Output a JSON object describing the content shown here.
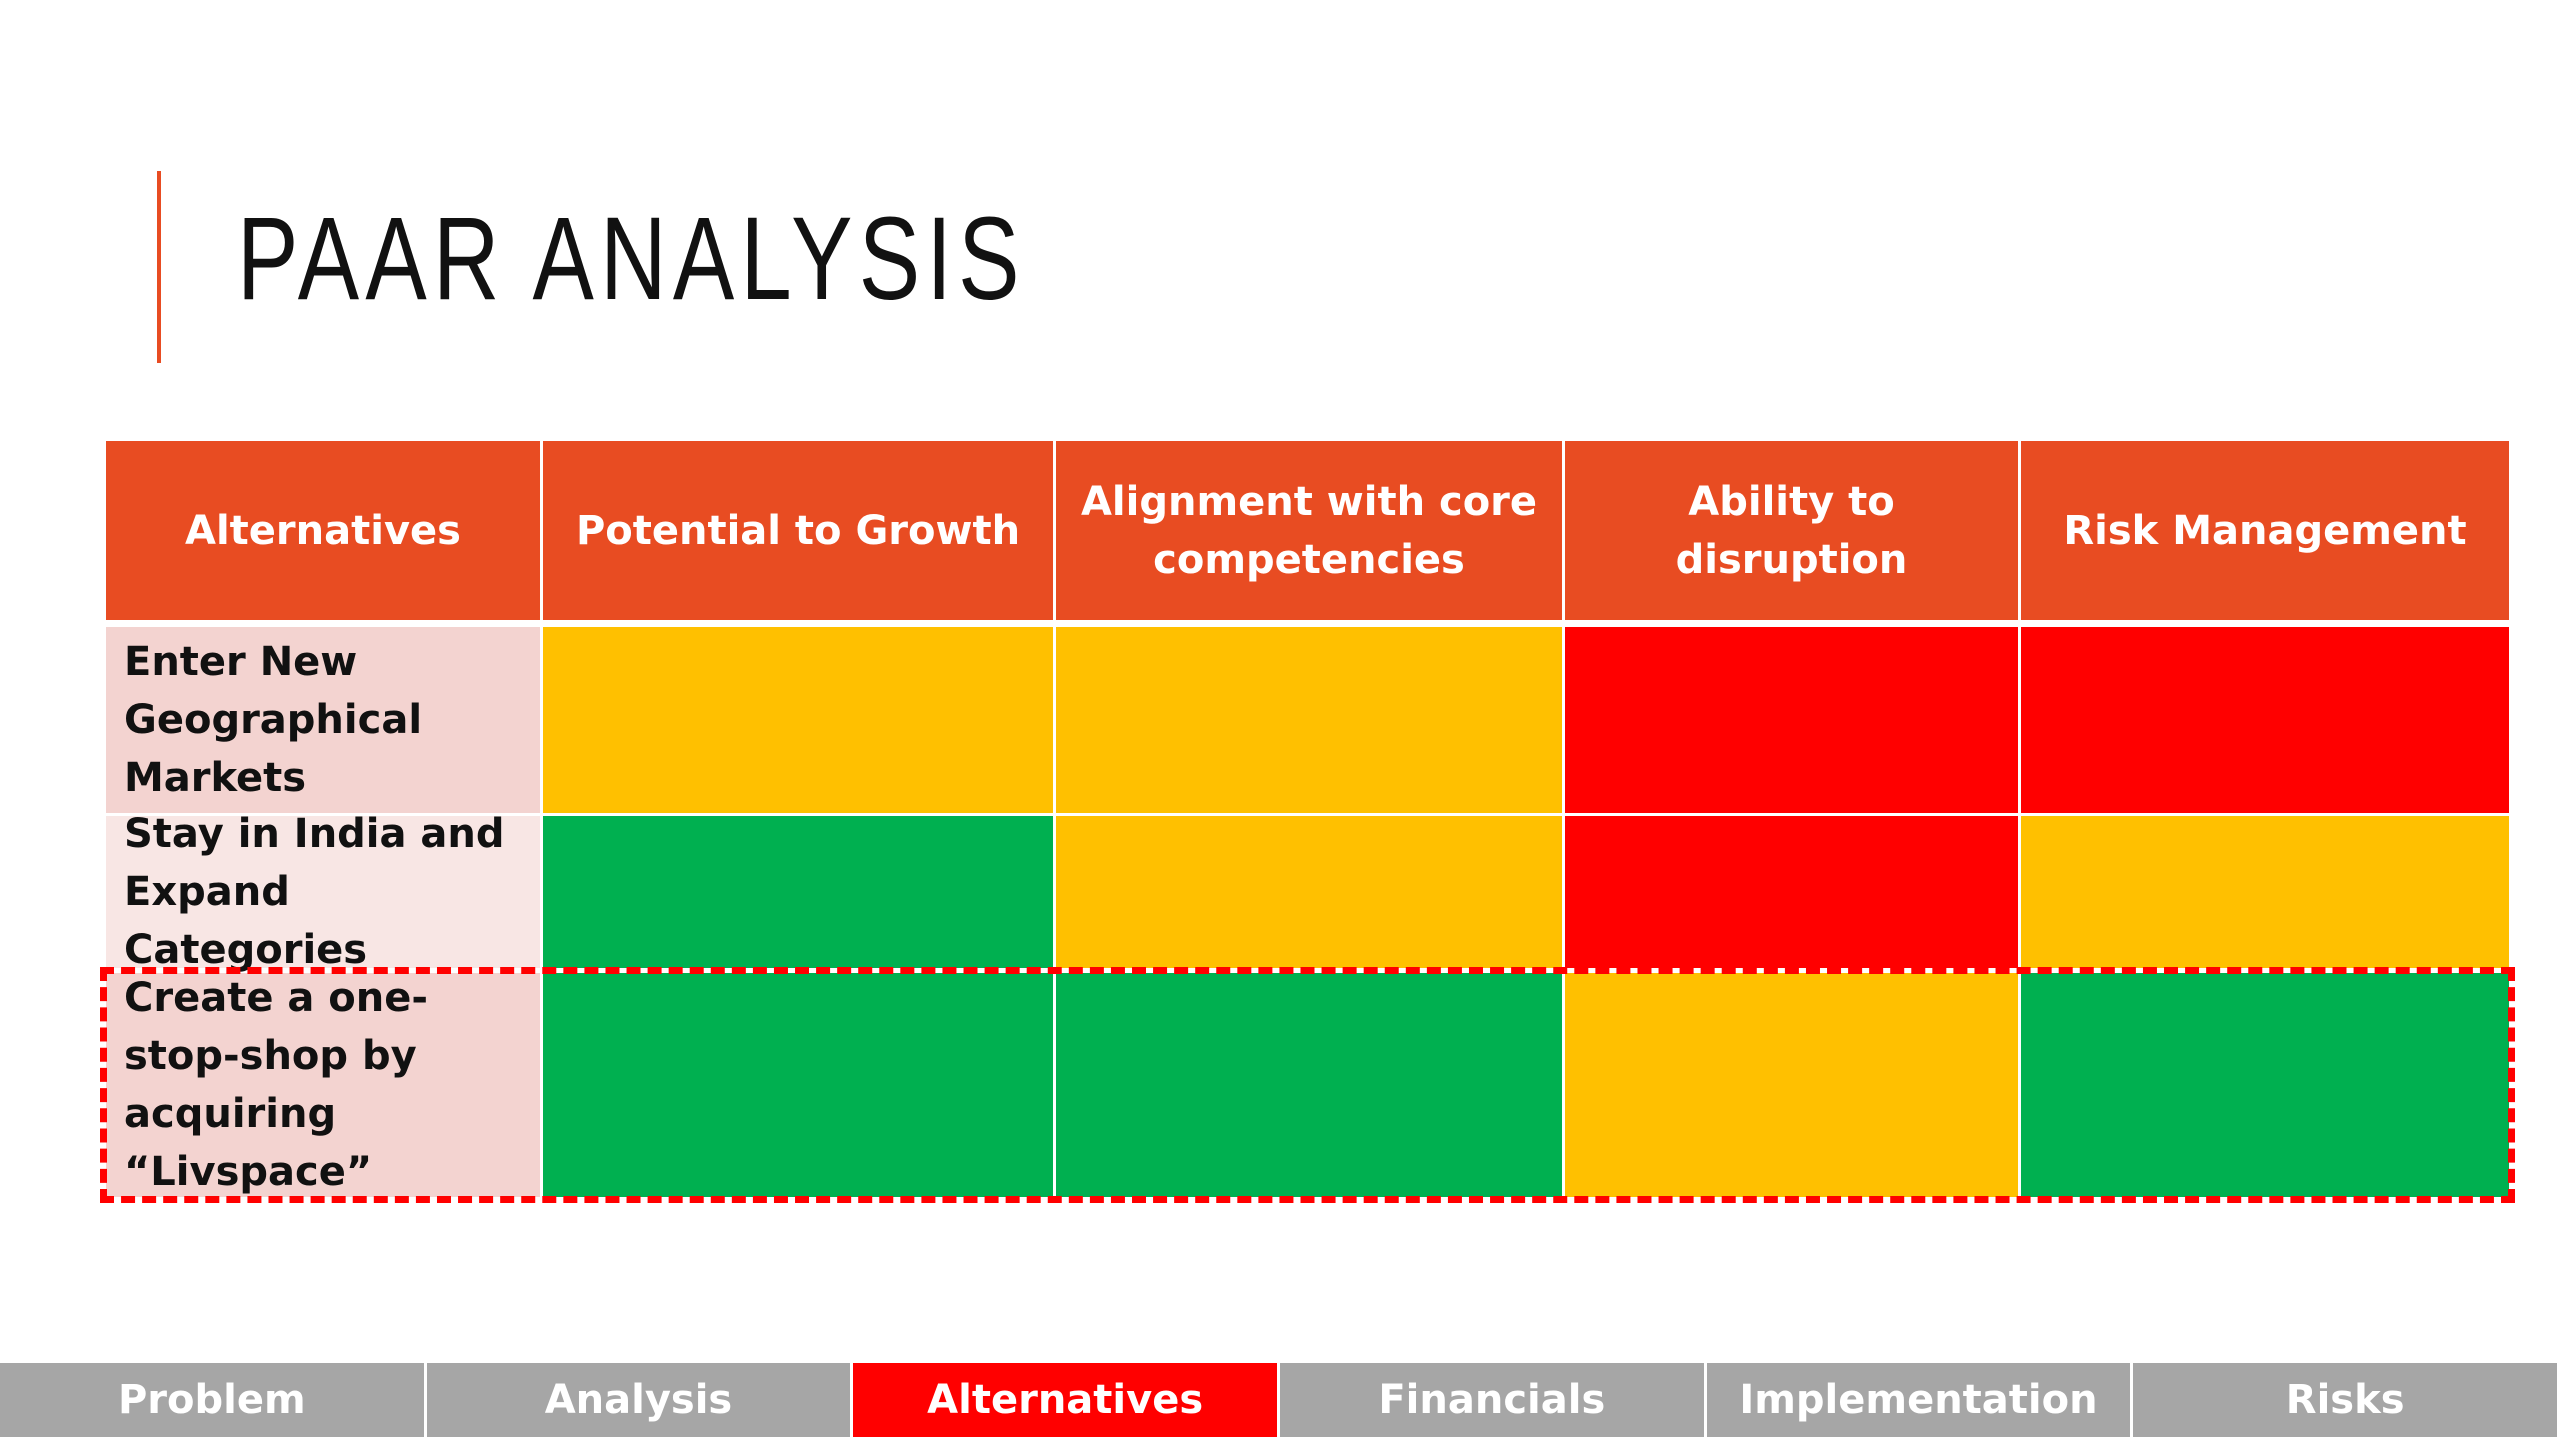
{
  "title": "PAAR ANALYSIS",
  "table": {
    "header": [
      "Alternatives",
      "Potential to Growth",
      "Alignment with core competencies",
      "Ability to disruption",
      "Risk Management"
    ],
    "rows": [
      {
        "label": "Enter New Geographical Markets",
        "label_color": "#F3D3D0",
        "cells": [
          "#FFC000",
          "#FFC000",
          "#FF0000",
          "#FF0000"
        ]
      },
      {
        "label": "Stay in India and Expand Categories",
        "label_color": "#F8E6E4",
        "cells": [
          "#00B050",
          "#FFC000",
          "#FF0000",
          "#FFC000"
        ]
      },
      {
        "label": "Create a one-stop-shop by acquiring “Livspace”",
        "label_color": "#F3D3D0",
        "cells": [
          "#00B050",
          "#00B050",
          "#FFC000",
          "#00B050"
        ],
        "highlighted": true
      }
    ]
  },
  "nav": {
    "items": [
      "Problem",
      "Analysis",
      "Alternatives",
      "Financials",
      "Implementation",
      "Risks"
    ],
    "active": 2
  }
}
